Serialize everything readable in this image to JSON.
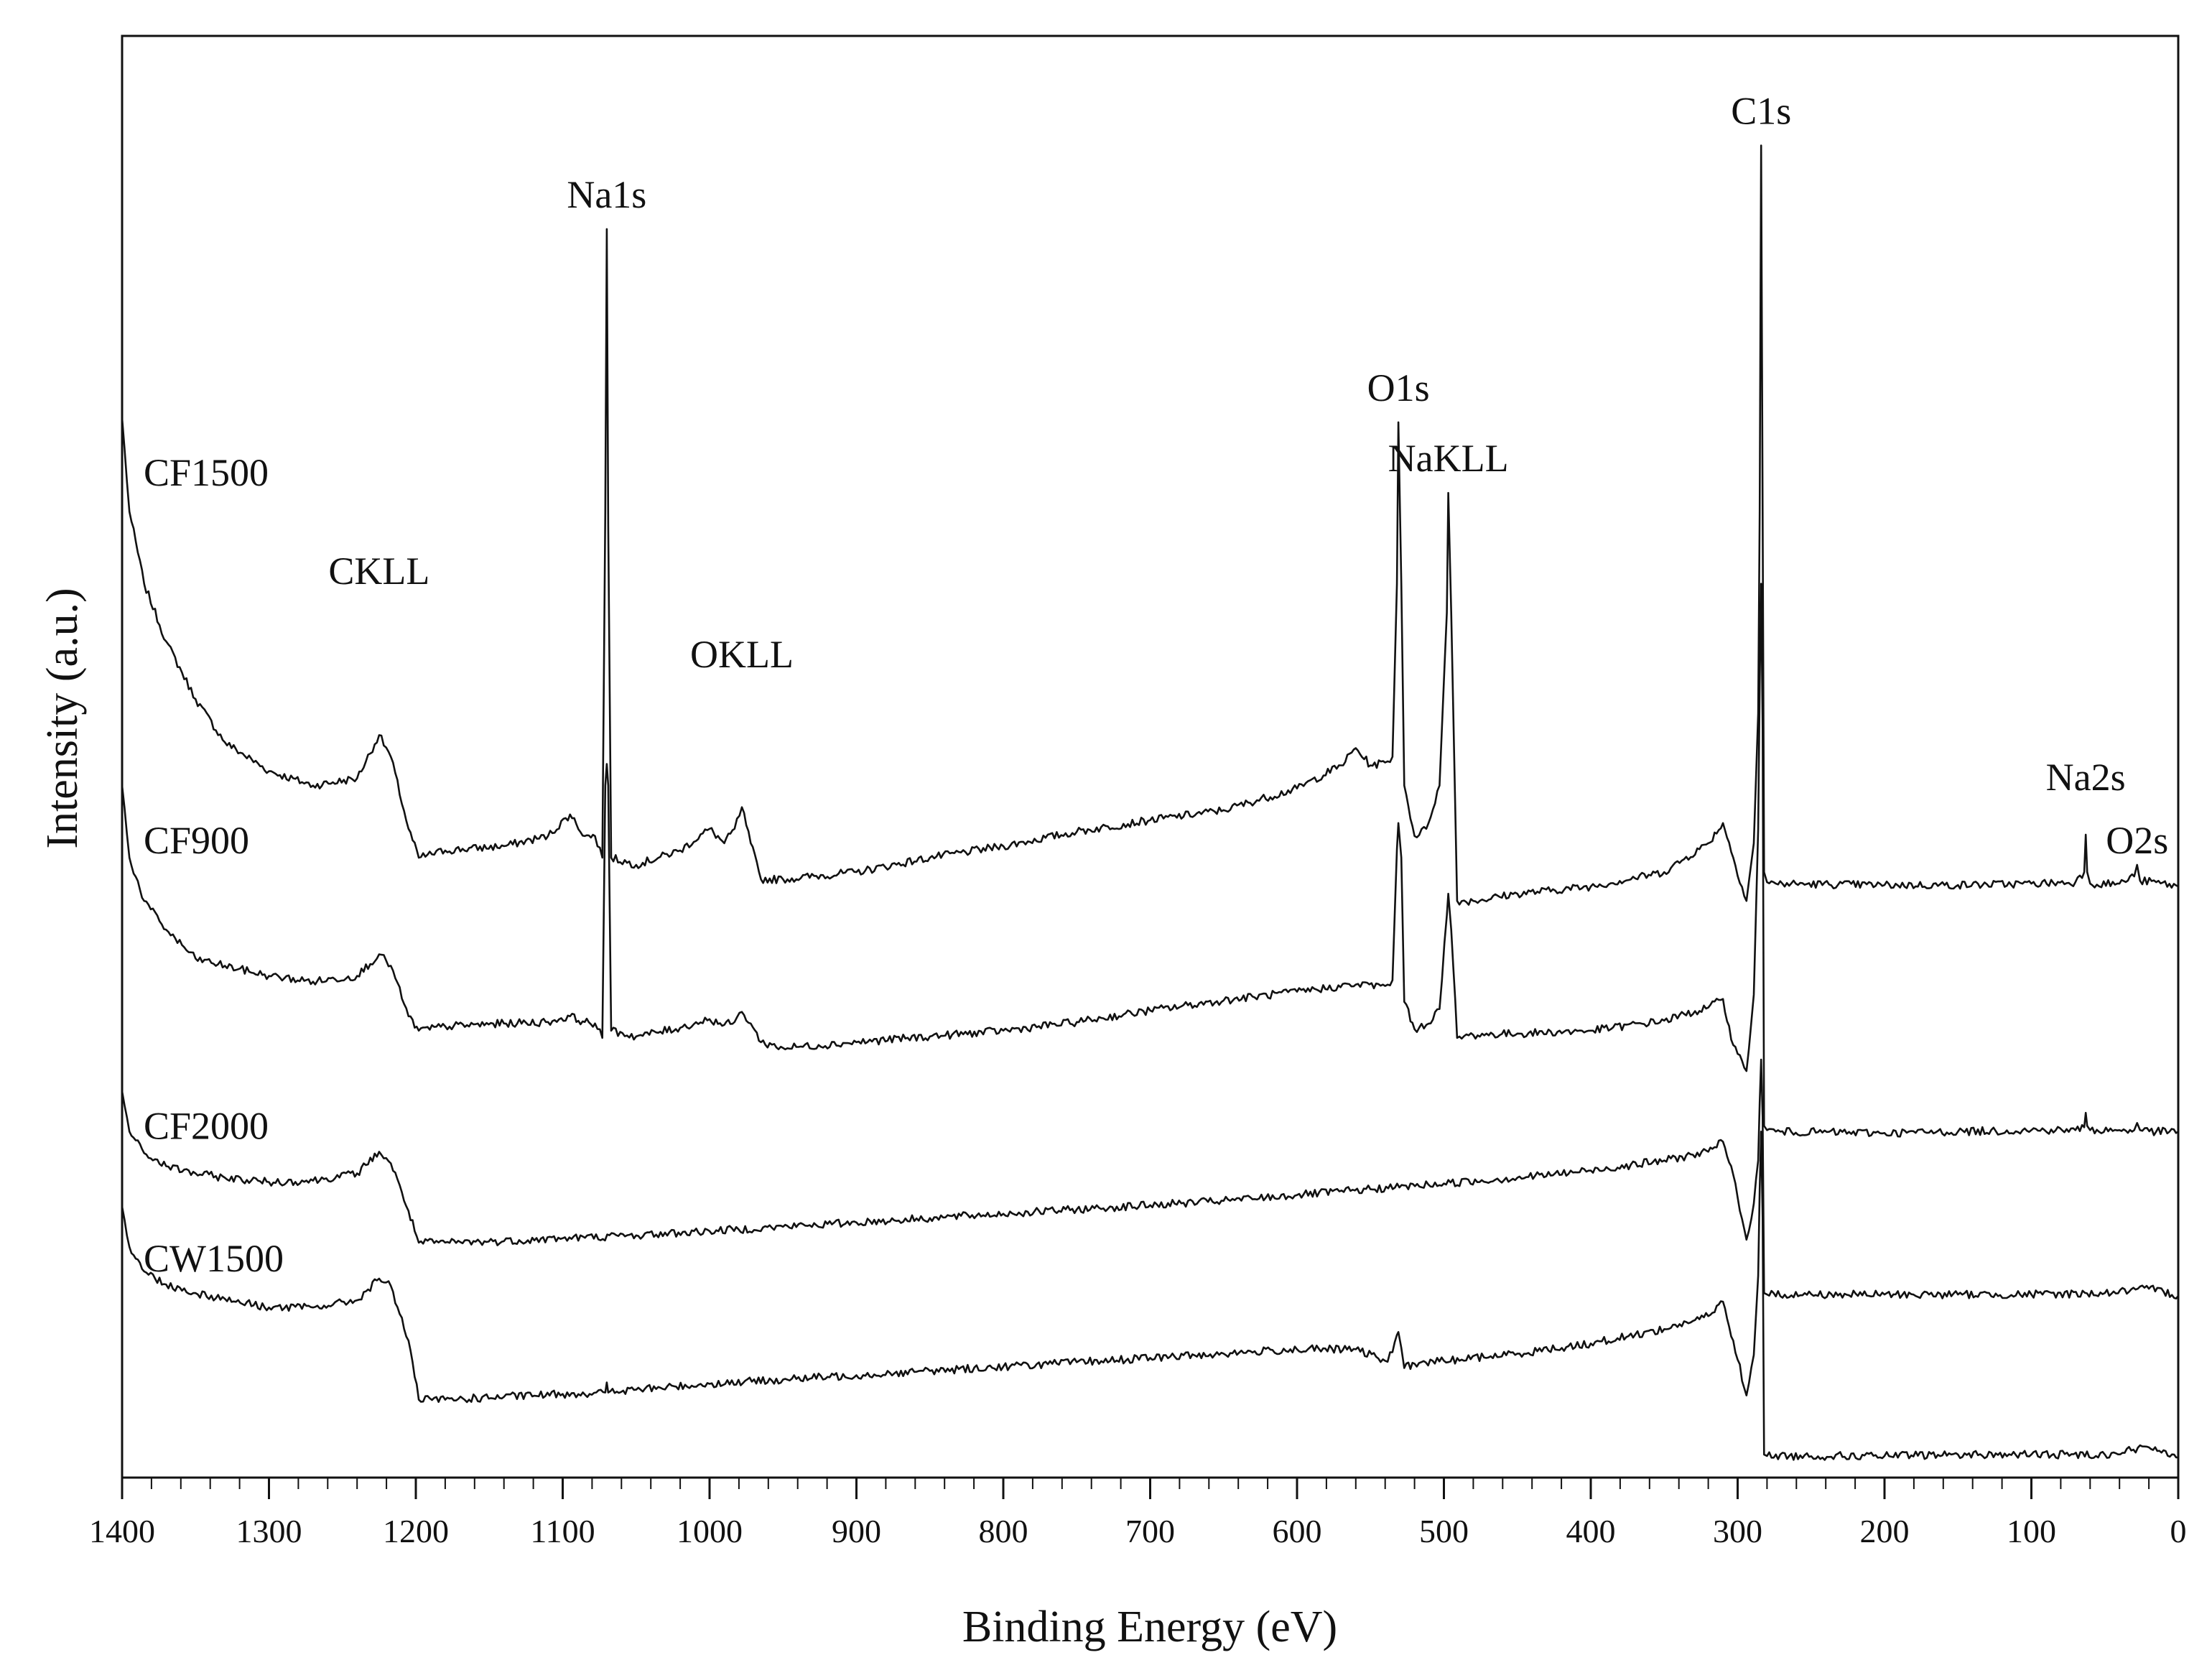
{
  "chart_data": {
    "type": "line",
    "xlabel": "Binding Energy (eV)",
    "ylabel": "Intensity (a.u.)",
    "xlim": [
      1400,
      0
    ],
    "ylim": [
      0,
      100
    ],
    "x_reversed": true,
    "grid": false,
    "legend": "none",
    "ticks": [
      1400,
      1300,
      1200,
      1100,
      1000,
      900,
      800,
      700,
      600,
      500,
      400,
      300,
      200,
      100,
      0
    ],
    "annotations": [
      {
        "text": "Na1s",
        "x": 1070,
        "y": 86.6
      },
      {
        "text": "C1s",
        "x": 284,
        "y": 92.4
      },
      {
        "text": "O1s",
        "x": 531,
        "y": 73.2
      },
      {
        "text": "NaKLL",
        "x": 497,
        "y": 68.3
      },
      {
        "text": "CKLL",
        "x": 1225,
        "y": 60.5
      },
      {
        "text": "OKLL",
        "x": 978,
        "y": 54.7
      },
      {
        "text": "Na2s",
        "x": 63,
        "y": 46.2
      },
      {
        "text": "O2s",
        "x": 28,
        "y": 41.8
      }
    ],
    "series": [
      {
        "name": "CF1500",
        "points": [
          [
            1400,
            73.5
          ],
          [
            1395,
            67
          ],
          [
            1385,
            62
          ],
          [
            1370,
            58
          ],
          [
            1350,
            54
          ],
          [
            1330,
            51
          ],
          [
            1300,
            49
          ],
          [
            1270,
            48
          ],
          [
            1240,
            48.5
          ],
          [
            1225,
            51.5
          ],
          [
            1217,
            50
          ],
          [
            1205,
            45
          ],
          [
            1198,
            43
          ],
          [
            1180,
            43.5
          ],
          [
            1140,
            43.8
          ],
          [
            1110,
            44.5
          ],
          [
            1095,
            46
          ],
          [
            1085,
            44.5
          ],
          [
            1078,
            44.5
          ],
          [
            1073,
            43
          ],
          [
            1071,
            67
          ],
          [
            1070,
            86.6
          ],
          [
            1069,
            66
          ],
          [
            1067,
            43
          ],
          [
            1050,
            42.5
          ],
          [
            1020,
            43.5
          ],
          [
            1000,
            45
          ],
          [
            990,
            44
          ],
          [
            983,
            45
          ],
          [
            978,
            46.5
          ],
          [
            972,
            44
          ],
          [
            965,
            41.5
          ],
          [
            950,
            41.5
          ],
          [
            900,
            42
          ],
          [
            850,
            43
          ],
          [
            800,
            43.8
          ],
          [
            750,
            44.8
          ],
          [
            700,
            45.6
          ],
          [
            650,
            46.3
          ],
          [
            600,
            47.8
          ],
          [
            570,
            49.4
          ],
          [
            560,
            50.6
          ],
          [
            550,
            49.4
          ],
          [
            540,
            49.6
          ],
          [
            535,
            50
          ],
          [
            532,
            62
          ],
          [
            531,
            73.2
          ],
          [
            529,
            62
          ],
          [
            527,
            48
          ],
          [
            520,
            44.5
          ],
          [
            512,
            45
          ],
          [
            503,
            48
          ],
          [
            498,
            60
          ],
          [
            497,
            68.3
          ],
          [
            495,
            60
          ],
          [
            491,
            40
          ],
          [
            480,
            40
          ],
          [
            450,
            40.5
          ],
          [
            400,
            41
          ],
          [
            350,
            42
          ],
          [
            320,
            44
          ],
          [
            310,
            45.4
          ],
          [
            303,
            43
          ],
          [
            294,
            40
          ],
          [
            289,
            44
          ],
          [
            286,
            53
          ],
          [
            285,
            67
          ],
          [
            284,
            92.4
          ],
          [
            283,
            67
          ],
          [
            282,
            42
          ],
          [
            280,
            41.3
          ],
          [
            274,
            41.2
          ],
          [
            200,
            41.1
          ],
          [
            150,
            41.1
          ],
          [
            100,
            41.2
          ],
          [
            70,
            41.3
          ],
          [
            64,
            42
          ],
          [
            63,
            44.6
          ],
          [
            62,
            42
          ],
          [
            60,
            41.2
          ],
          [
            40,
            41.2
          ],
          [
            30,
            41.7
          ],
          [
            28,
            42.5
          ],
          [
            26,
            41.4
          ],
          [
            15,
            41.3
          ],
          [
            0,
            41
          ]
        ]
      },
      {
        "name": "CF900",
        "points": [
          [
            1400,
            48
          ],
          [
            1395,
            43
          ],
          [
            1385,
            40
          ],
          [
            1370,
            38
          ],
          [
            1350,
            36
          ],
          [
            1330,
            35.5
          ],
          [
            1300,
            34.8
          ],
          [
            1270,
            34.4
          ],
          [
            1240,
            34.8
          ],
          [
            1225,
            36.3
          ],
          [
            1217,
            35.5
          ],
          [
            1205,
            32
          ],
          [
            1198,
            31
          ],
          [
            1180,
            31.3
          ],
          [
            1140,
            31.5
          ],
          [
            1110,
            31.6
          ],
          [
            1095,
            32
          ],
          [
            1085,
            31.6
          ],
          [
            1078,
            31.5
          ],
          [
            1073,
            30.5
          ],
          [
            1071,
            48
          ],
          [
            1070,
            49.5
          ],
          [
            1069,
            48
          ],
          [
            1067,
            31
          ],
          [
            1050,
            30.6
          ],
          [
            1020,
            31.2
          ],
          [
            1000,
            31.8
          ],
          [
            990,
            31.4
          ],
          [
            983,
            31.6
          ],
          [
            978,
            32.3
          ],
          [
            972,
            31.5
          ],
          [
            965,
            30.2
          ],
          [
            950,
            29.8
          ],
          [
            900,
            30.2
          ],
          [
            850,
            30.6
          ],
          [
            800,
            31
          ],
          [
            750,
            31.6
          ],
          [
            700,
            32.4
          ],
          [
            650,
            33.1
          ],
          [
            600,
            33.7
          ],
          [
            560,
            34.2
          ],
          [
            540,
            34.1
          ],
          [
            535,
            34.5
          ],
          [
            532,
            43.6
          ],
          [
            531,
            45.4
          ],
          [
            529,
            43
          ],
          [
            527,
            33
          ],
          [
            520,
            31.1
          ],
          [
            512,
            31.4
          ],
          [
            503,
            32.5
          ],
          [
            498,
            39
          ],
          [
            497,
            40.5
          ],
          [
            495,
            38
          ],
          [
            491,
            30.5
          ],
          [
            480,
            30.7
          ],
          [
            450,
            30.8
          ],
          [
            400,
            31
          ],
          [
            350,
            31.7
          ],
          [
            320,
            32.6
          ],
          [
            310,
            33.2
          ],
          [
            303,
            30
          ],
          [
            294,
            28.2
          ],
          [
            289,
            33.5
          ],
          [
            286,
            45
          ],
          [
            285,
            55
          ],
          [
            284,
            62
          ],
          [
            283,
            52
          ],
          [
            282,
            24.4
          ],
          [
            280,
            24.1
          ],
          [
            274,
            24
          ],
          [
            200,
            23.9
          ],
          [
            150,
            24
          ],
          [
            100,
            24.1
          ],
          [
            70,
            24.1
          ],
          [
            64,
            24.3
          ],
          [
            63,
            25.3
          ],
          [
            62,
            24.4
          ],
          [
            60,
            24.1
          ],
          [
            40,
            24.1
          ],
          [
            30,
            24.1
          ],
          [
            28,
            24.6
          ],
          [
            26,
            24.1
          ],
          [
            15,
            24
          ],
          [
            0,
            24
          ]
        ]
      },
      {
        "name": "CF2000",
        "points": [
          [
            1400,
            26.8
          ],
          [
            1395,
            24
          ],
          [
            1385,
            22.5
          ],
          [
            1370,
            21.6
          ],
          [
            1350,
            21.1
          ],
          [
            1330,
            20.8
          ],
          [
            1300,
            20.5
          ],
          [
            1270,
            20.6
          ],
          [
            1240,
            21.1
          ],
          [
            1225,
            22.6
          ],
          [
            1217,
            21.8
          ],
          [
            1205,
            18.5
          ],
          [
            1198,
            16.3
          ],
          [
            1180,
            16.3
          ],
          [
            1140,
            16.4
          ],
          [
            1100,
            16.6
          ],
          [
            1050,
            16.8
          ],
          [
            1000,
            17.1
          ],
          [
            950,
            17.4
          ],
          [
            900,
            17.7
          ],
          [
            850,
            18
          ],
          [
            800,
            18.3
          ],
          [
            750,
            18.6
          ],
          [
            700,
            18.9
          ],
          [
            650,
            19.2
          ],
          [
            600,
            19.6
          ],
          [
            550,
            20
          ],
          [
            500,
            20.4
          ],
          [
            450,
            20.8
          ],
          [
            400,
            21.3
          ],
          [
            350,
            22
          ],
          [
            320,
            22.6
          ],
          [
            310,
            23.3
          ],
          [
            303,
            21
          ],
          [
            294,
            16.5
          ],
          [
            289,
            19
          ],
          [
            286,
            22
          ],
          [
            285,
            26
          ],
          [
            284,
            29
          ],
          [
            283,
            25
          ],
          [
            282,
            12.8
          ],
          [
            280,
            12.7
          ],
          [
            200,
            12.7
          ],
          [
            150,
            12.7
          ],
          [
            100,
            12.7
          ],
          [
            50,
            12.8
          ],
          [
            20,
            13.1
          ],
          [
            10,
            12.9
          ],
          [
            0,
            12.6
          ]
        ]
      },
      {
        "name": "CW1500",
        "points": [
          [
            1400,
            18.8
          ],
          [
            1395,
            16
          ],
          [
            1385,
            14.3
          ],
          [
            1370,
            13.4
          ],
          [
            1350,
            12.8
          ],
          [
            1330,
            12.4
          ],
          [
            1300,
            11.8
          ],
          [
            1270,
            11.8
          ],
          [
            1240,
            12.3
          ],
          [
            1225,
            13.8
          ],
          [
            1217,
            13.3
          ],
          [
            1205,
            9.5
          ],
          [
            1198,
            5.4
          ],
          [
            1180,
            5.4
          ],
          [
            1140,
            5.6
          ],
          [
            1100,
            5.8
          ],
          [
            1071,
            5.9
          ],
          [
            1070,
            6.6
          ],
          [
            1069,
            5.9
          ],
          [
            1050,
            6.1
          ],
          [
            1000,
            6.5
          ],
          [
            950,
            6.8
          ],
          [
            900,
            7.1
          ],
          [
            850,
            7.4
          ],
          [
            800,
            7.7
          ],
          [
            750,
            8
          ],
          [
            700,
            8.3
          ],
          [
            650,
            8.6
          ],
          [
            600,
            8.9
          ],
          [
            560,
            8.9
          ],
          [
            540,
            8.1
          ],
          [
            535,
            8.7
          ],
          [
            532,
            9.9
          ],
          [
            531,
            10.1
          ],
          [
            529,
            9
          ],
          [
            527,
            7.6
          ],
          [
            520,
            7.9
          ],
          [
            500,
            8.1
          ],
          [
            450,
            8.6
          ],
          [
            400,
            9.3
          ],
          [
            350,
            10.3
          ],
          [
            320,
            11.2
          ],
          [
            310,
            12.2
          ],
          [
            303,
            9.5
          ],
          [
            294,
            5.7
          ],
          [
            289,
            8.5
          ],
          [
            286,
            14
          ],
          [
            285,
            20
          ],
          [
            284,
            24
          ],
          [
            283,
            18
          ],
          [
            282,
            1.6
          ],
          [
            280,
            1.5
          ],
          [
            200,
            1.5
          ],
          [
            150,
            1.6
          ],
          [
            100,
            1.6
          ],
          [
            50,
            1.6
          ],
          [
            20,
            2.1
          ],
          [
            10,
            1.9
          ],
          [
            0,
            1.4
          ]
        ]
      }
    ],
    "series_labels": [
      {
        "name": "CF1500",
        "y": 69.7
      },
      {
        "name": "CF900",
        "y": 44.2
      },
      {
        "name": "CF2000",
        "y": 24.4
      },
      {
        "name": "CW1500",
        "y": 15.2
      }
    ]
  }
}
